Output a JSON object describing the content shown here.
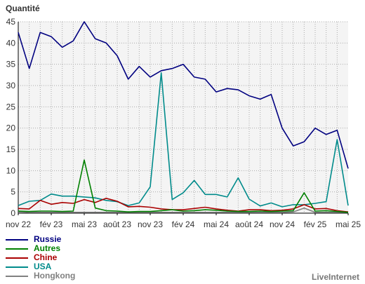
{
  "chart_data": {
    "type": "line",
    "ylabel": "Quantité",
    "ylim": [
      0,
      45
    ],
    "yticks": [
      0,
      5,
      10,
      15,
      20,
      25,
      30,
      35,
      40,
      45
    ],
    "x_count": 31,
    "xticks": [
      {
        "index": 0,
        "label": "nov 22"
      },
      {
        "index": 3,
        "label": "fév 23"
      },
      {
        "index": 6,
        "label": "mai 23"
      },
      {
        "index": 9,
        "label": "août 23"
      },
      {
        "index": 12,
        "label": "nov 23"
      },
      {
        "index": 15,
        "label": "fév 24"
      },
      {
        "index": 18,
        "label": "mai 24"
      },
      {
        "index": 21,
        "label": "août 24"
      },
      {
        "index": 24,
        "label": "nov 24"
      },
      {
        "index": 27,
        "label": "fév 25"
      },
      {
        "index": 30,
        "label": "mai 25"
      }
    ],
    "grid": true,
    "legend_position": "bottom-left",
    "series": [
      {
        "name": "Russie",
        "color": "#000080",
        "values": [
          42.5,
          34,
          42.5,
          41.5,
          39,
          40.5,
          45,
          41,
          40,
          37,
          31.5,
          34.5,
          32,
          33.5,
          34,
          35,
          32,
          31.5,
          28.5,
          29.3,
          29,
          27.6,
          26.8,
          27.9,
          20,
          15.8,
          16.8,
          20,
          18.5,
          19.5,
          10.5
        ]
      },
      {
        "name": "Autres",
        "color": "#008000",
        "values": [
          0.5,
          0.4,
          0.5,
          0.5,
          0.4,
          0.5,
          12.5,
          1.2,
          0.6,
          0.5,
          0.3,
          0.4,
          0.4,
          0.6,
          0.8,
          0.5,
          0.6,
          0.8,
          0.7,
          0.5,
          0.4,
          0.4,
          0.5,
          0.4,
          0.5,
          0.6,
          4.8,
          0.5,
          0.6,
          0.4,
          0.2
        ]
      },
      {
        "name": "Chine",
        "color": "#aa0000",
        "values": [
          1.1,
          1.0,
          3.0,
          2.1,
          2.5,
          2.3,
          3.2,
          2.5,
          3.5,
          2.8,
          1.5,
          1.6,
          1.4,
          1.0,
          0.8,
          0.8,
          1.1,
          1.4,
          1.0,
          0.7,
          0.5,
          0.8,
          0.8,
          0.6,
          0.7,
          1.0,
          2.0,
          1.0,
          1.1,
          0.6,
          0.3
        ]
      },
      {
        "name": "USA",
        "color": "#008b8b",
        "values": [
          1.8,
          2.8,
          3.0,
          4.5,
          4.0,
          4.0,
          3.8,
          3.6,
          3.0,
          2.7,
          1.8,
          2.4,
          6.2,
          33,
          3.2,
          4.8,
          7.7,
          4.4,
          4.4,
          3.8,
          8.3,
          3.3,
          1.7,
          2.4,
          1.5,
          2.0,
          2.0,
          2.3,
          2.7,
          17.3,
          1.8
        ]
      },
      {
        "name": "Hongkong",
        "color": "#808080",
        "values": [
          0.3,
          0.2,
          0.2,
          0.2,
          0.2,
          0.2,
          0.2,
          0.2,
          0.2,
          0.2,
          0.2,
          0.2,
          0.2,
          0.2,
          0.2,
          0.2,
          0.2,
          0.2,
          0.2,
          0.2,
          0.2,
          0.2,
          0.2,
          0.2,
          0.2,
          0.3,
          1.2,
          0.2,
          0.2,
          0.2,
          0.2
        ]
      }
    ]
  },
  "credit": "LiveInternet"
}
